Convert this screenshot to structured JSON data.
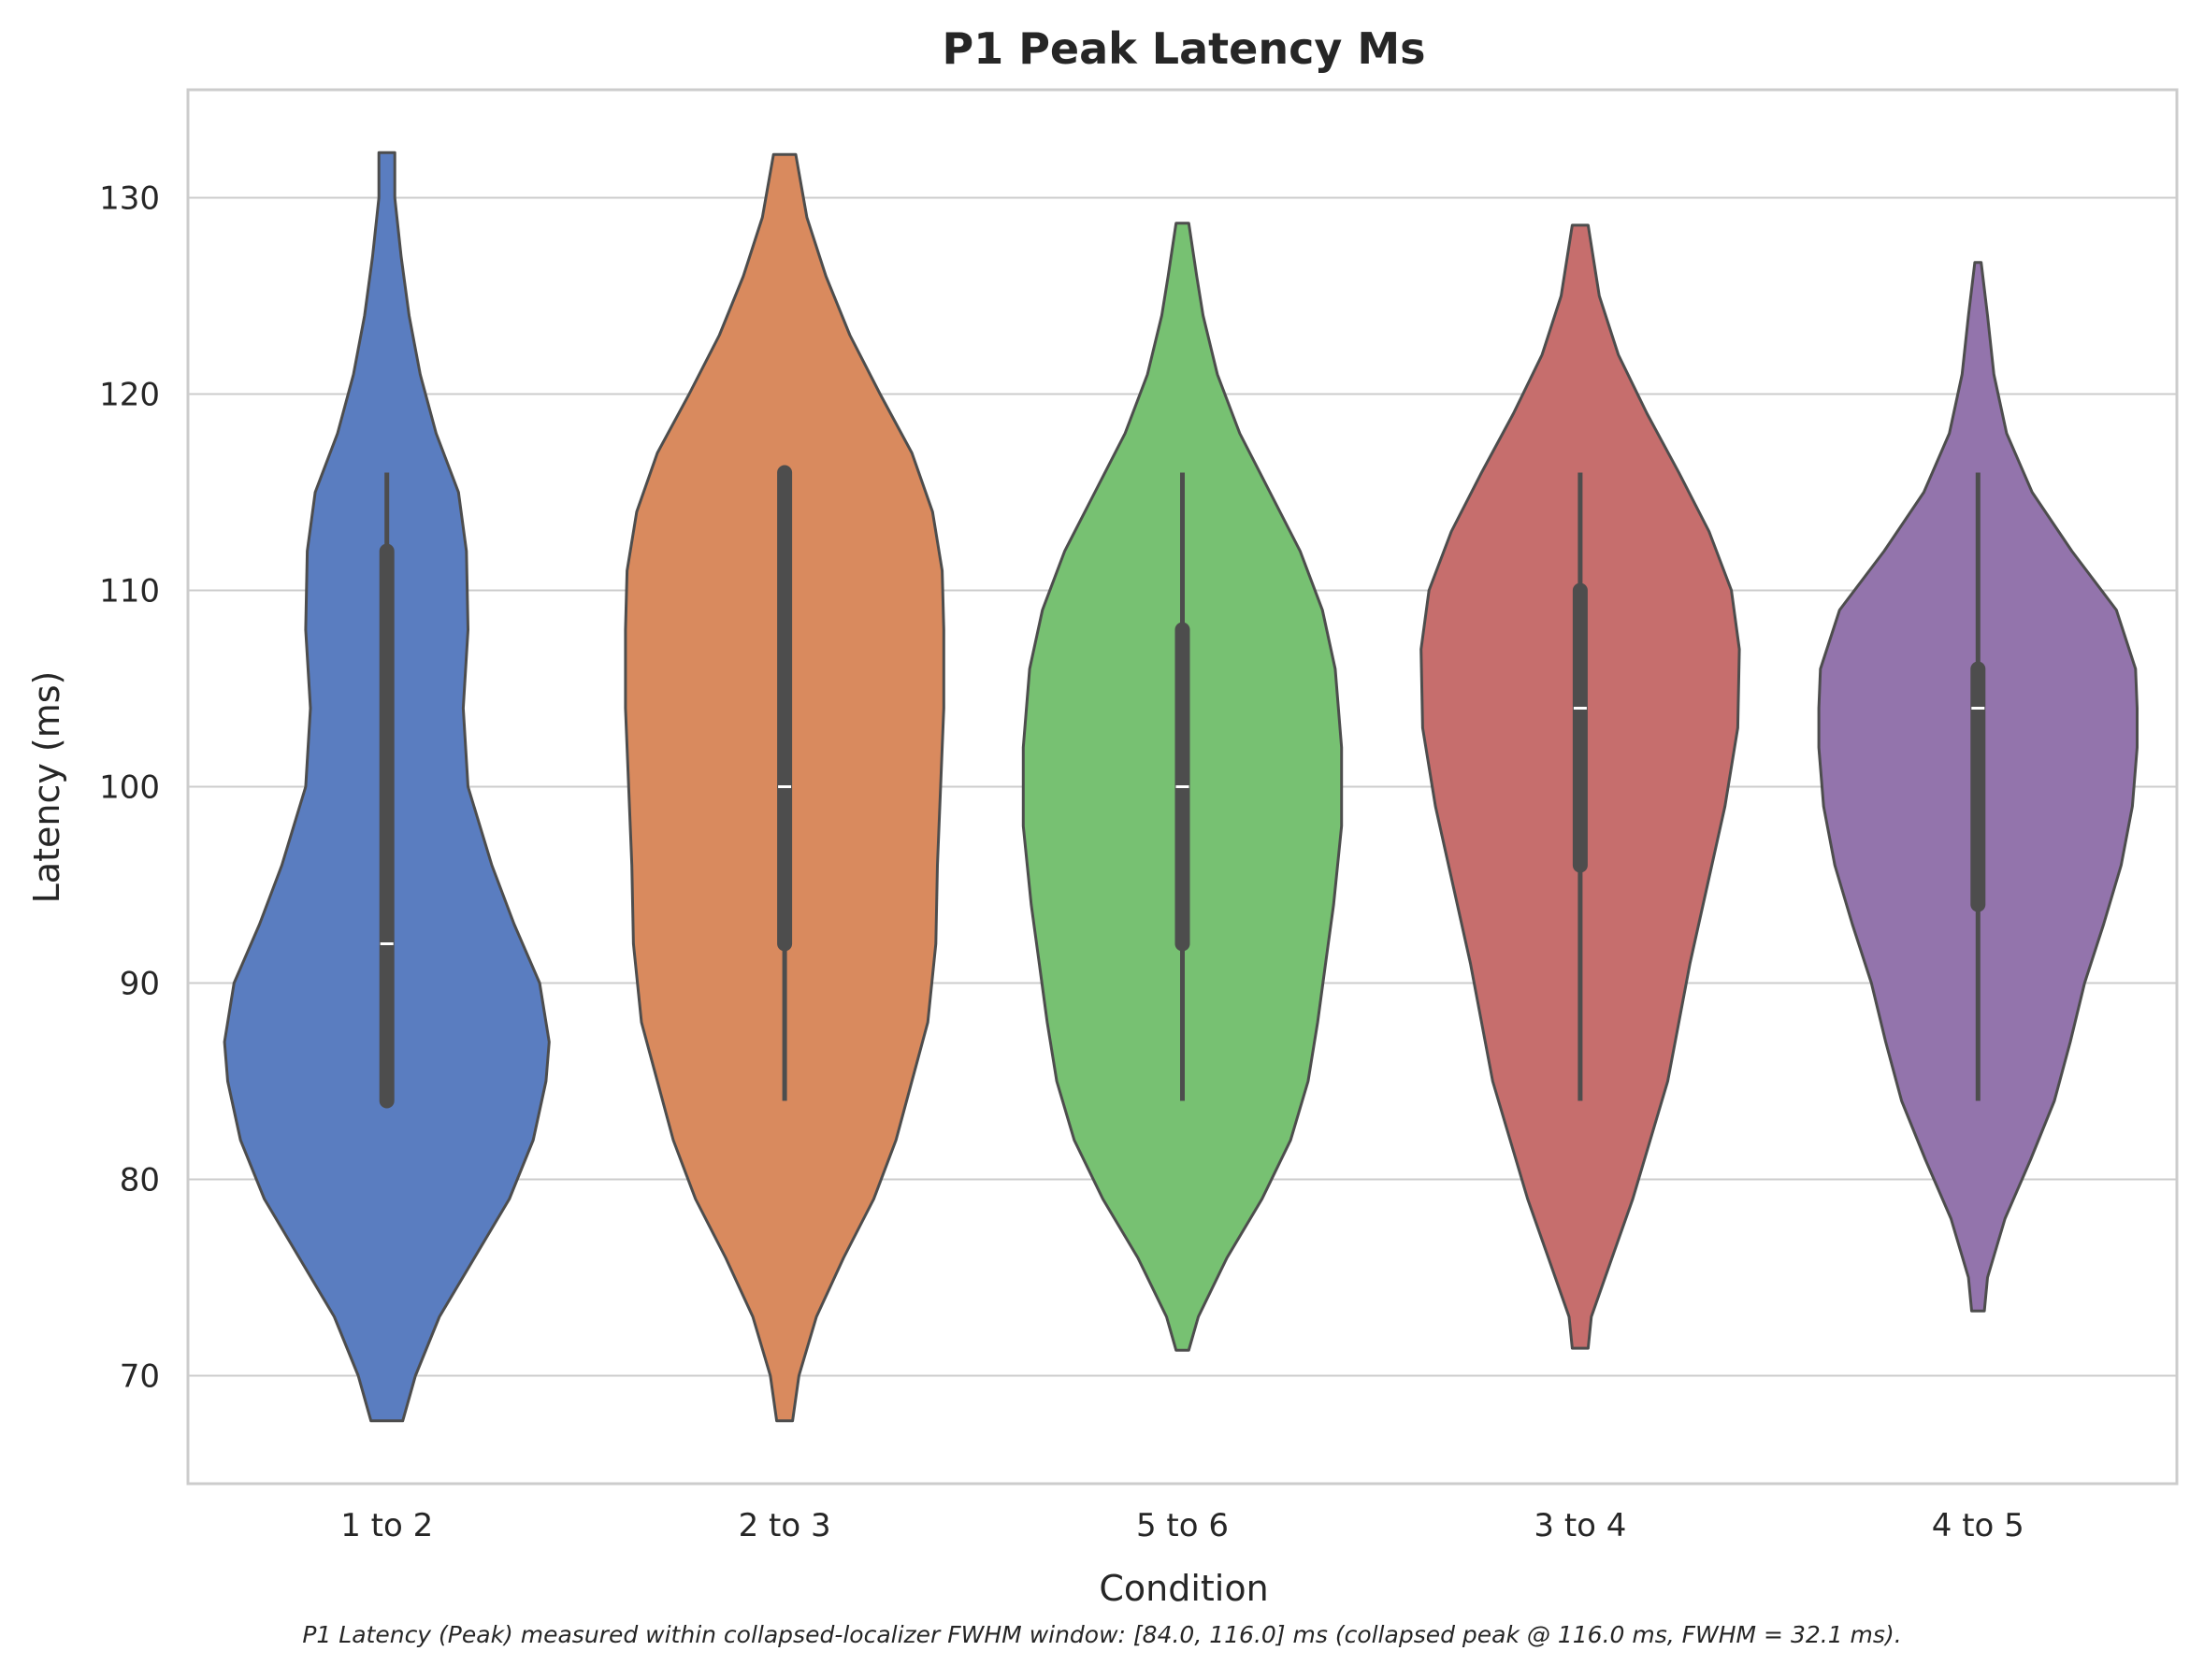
{
  "chart_data": {
    "type": "violin",
    "title": "P1 Peak Latency Ms",
    "xlabel": "Condition",
    "ylabel": "Latency (ms)",
    "ylim": [
      64.5,
      135.5
    ],
    "yticks": [
      70,
      80,
      90,
      100,
      110,
      120,
      130
    ],
    "grid": "horizontal",
    "categories": [
      "1 to 2",
      "2 to 3",
      "5 to 6",
      "3 to 4",
      "4 to 5"
    ],
    "series": [
      {
        "category": "1 to 2",
        "color": "#5a7dc0",
        "extent": [
          67.7,
          132.3
        ],
        "median": 92,
        "q1": 84,
        "q3": 112,
        "whisker_low": 84,
        "whisker_high": 116,
        "density": [
          [
            67.7,
            0.1
          ],
          [
            70,
            0.18
          ],
          [
            73,
            0.33
          ],
          [
            76,
            0.55
          ],
          [
            79,
            0.77
          ],
          [
            82,
            0.92
          ],
          [
            85,
            1.0
          ],
          [
            87,
            1.02
          ],
          [
            90,
            0.96
          ],
          [
            93,
            0.8
          ],
          [
            96,
            0.66
          ],
          [
            100,
            0.51
          ],
          [
            104,
            0.48
          ],
          [
            108,
            0.51
          ],
          [
            112,
            0.5
          ],
          [
            115,
            0.45
          ],
          [
            118,
            0.31
          ],
          [
            121,
            0.21
          ],
          [
            124,
            0.14
          ],
          [
            127,
            0.09
          ],
          [
            130,
            0.05
          ],
          [
            132.3,
            0.05
          ]
        ]
      },
      {
        "category": "2 to 3",
        "color": "#d98a5e",
        "extent": [
          67.7,
          132.2
        ],
        "median": 100,
        "q1": 92,
        "q3": 116,
        "whisker_low": 84,
        "whisker_high": 116,
        "density": [
          [
            67.7,
            0.05
          ],
          [
            70,
            0.09
          ],
          [
            73,
            0.2
          ],
          [
            76,
            0.37
          ],
          [
            79,
            0.56
          ],
          [
            82,
            0.7
          ],
          [
            85,
            0.8
          ],
          [
            88,
            0.9
          ],
          [
            92,
            0.95
          ],
          [
            96,
            0.96
          ],
          [
            100,
            0.98
          ],
          [
            104,
            1.0
          ],
          [
            108,
            1.0
          ],
          [
            111,
            0.99
          ],
          [
            114,
            0.93
          ],
          [
            117,
            0.8
          ],
          [
            120,
            0.6
          ],
          [
            123,
            0.41
          ],
          [
            126,
            0.26
          ],
          [
            129,
            0.14
          ],
          [
            132.2,
            0.07
          ]
        ]
      },
      {
        "category": "5 to 6",
        "color": "#77c172",
        "extent": [
          71.3,
          128.7
        ],
        "median": 100,
        "q1": 92,
        "q3": 108,
        "whisker_low": 84,
        "whisker_high": 116,
        "density": [
          [
            71.3,
            0.04
          ],
          [
            73,
            0.1
          ],
          [
            76,
            0.28
          ],
          [
            79,
            0.5
          ],
          [
            82,
            0.68
          ],
          [
            85,
            0.79
          ],
          [
            88,
            0.85
          ],
          [
            91,
            0.9
          ],
          [
            94,
            0.95
          ],
          [
            98,
            1.0
          ],
          [
            102,
            1.0
          ],
          [
            106,
            0.96
          ],
          [
            109,
            0.88
          ],
          [
            112,
            0.74
          ],
          [
            115,
            0.55
          ],
          [
            118,
            0.36
          ],
          [
            121,
            0.22
          ],
          [
            124,
            0.13
          ],
          [
            126,
            0.09
          ],
          [
            128.7,
            0.04
          ]
        ]
      },
      {
        "category": "3 to 4",
        "color": "#c66e6d",
        "extent": [
          71.4,
          128.6
        ],
        "median": 104,
        "q1": 96,
        "q3": 110,
        "whisker_low": 84,
        "whisker_high": 116,
        "density": [
          [
            71.4,
            0.05
          ],
          [
            73,
            0.07
          ],
          [
            76,
            0.2
          ],
          [
            79,
            0.33
          ],
          [
            82,
            0.44
          ],
          [
            85,
            0.55
          ],
          [
            88,
            0.62
          ],
          [
            91,
            0.69
          ],
          [
            95,
            0.8
          ],
          [
            99,
            0.91
          ],
          [
            103,
            0.99
          ],
          [
            107,
            1.0
          ],
          [
            110,
            0.95
          ],
          [
            113,
            0.81
          ],
          [
            116,
            0.62
          ],
          [
            119,
            0.42
          ],
          [
            122,
            0.24
          ],
          [
            125,
            0.12
          ],
          [
            128.6,
            0.05
          ]
        ]
      },
      {
        "category": "4 to 5",
        "color": "#9374ac",
        "extent": [
          73.3,
          126.7
        ],
        "median": 104,
        "q1": 94,
        "q3": 106,
        "whisker_low": 84,
        "whisker_high": 116,
        "density": [
          [
            73.3,
            0.04
          ],
          [
            75,
            0.06
          ],
          [
            78,
            0.17
          ],
          [
            81,
            0.33
          ],
          [
            84,
            0.48
          ],
          [
            87,
            0.58
          ],
          [
            90,
            0.67
          ],
          [
            93,
            0.79
          ],
          [
            96,
            0.9
          ],
          [
            99,
            0.97
          ],
          [
            102,
            1.0
          ],
          [
            104,
            1.0
          ],
          [
            106,
            0.99
          ],
          [
            109,
            0.87
          ],
          [
            112,
            0.59
          ],
          [
            115,
            0.34
          ],
          [
            118,
            0.18
          ],
          [
            121,
            0.1
          ],
          [
            124,
            0.06
          ],
          [
            126.7,
            0.02
          ]
        ]
      }
    ]
  },
  "footnote": "P1 Latency (Peak) measured within collapsed-localizer FWHM window: [84.0, 116.0] ms (collapsed peak @ 116.0 ms, FWHM = 32.1 ms).",
  "colors": {
    "outline": "#4d4d4d",
    "grid": "#cccccc",
    "axes": "#cccccc",
    "box": "#4d4d4d",
    "median": "#ffffff",
    "text": "#262626"
  }
}
